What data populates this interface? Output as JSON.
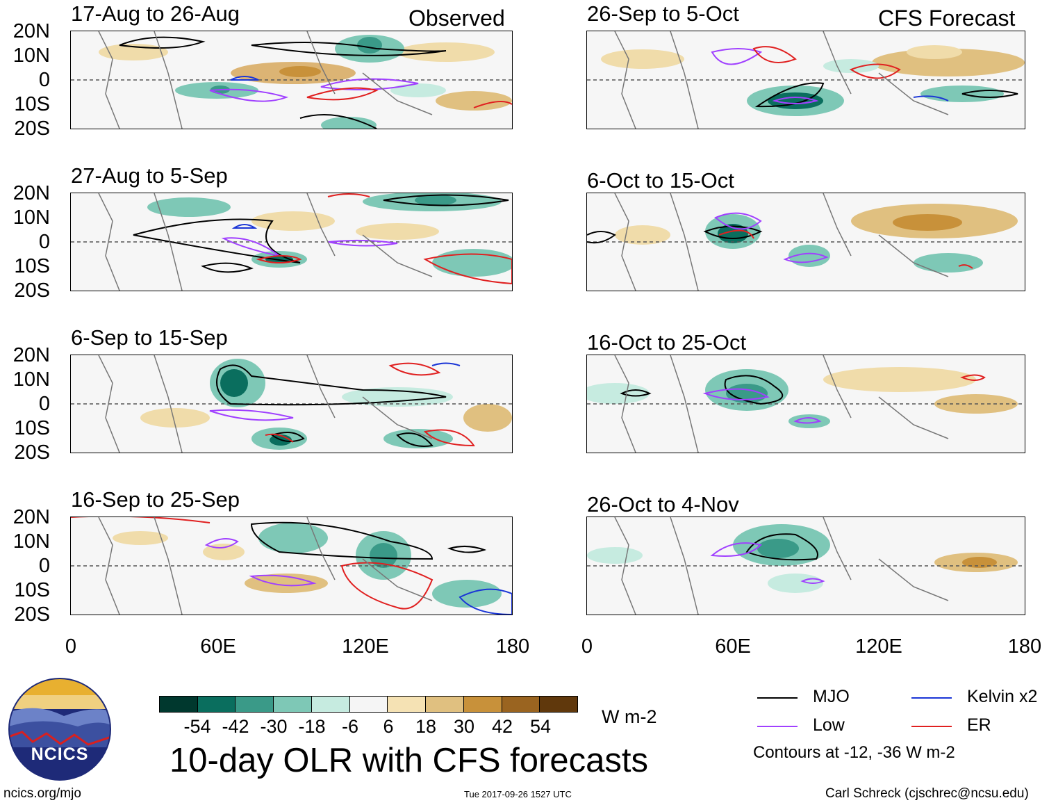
{
  "header": {
    "left_label": "Observed",
    "right_label": "CFS Forecast"
  },
  "panels": [
    {
      "title": "17-Aug to 26-Aug",
      "group": "observed"
    },
    {
      "title": "27-Aug to 5-Sep",
      "group": "observed"
    },
    {
      "title": "6-Sep to 15-Sep",
      "group": "observed"
    },
    {
      "title": "16-Sep to 25-Sep",
      "group": "observed"
    },
    {
      "title": "26-Sep to 5-Oct",
      "group": "forecast"
    },
    {
      "title": "6-Oct to 15-Oct",
      "group": "forecast"
    },
    {
      "title": "16-Oct to 25-Oct",
      "group": "forecast"
    },
    {
      "title": "26-Oct to 4-Nov",
      "group": "forecast"
    }
  ],
  "axes": {
    "y_ticks": [
      "20N",
      "10N",
      "0",
      "10S",
      "20S"
    ],
    "x_ticks": [
      "0",
      "60E",
      "120E",
      "180"
    ]
  },
  "colorbar": {
    "labels": [
      "-54",
      "-42",
      "-30",
      "-18",
      "-6",
      "6",
      "18",
      "30",
      "42",
      "54"
    ],
    "units": "W m-2",
    "colors": [
      "#00382e",
      "#0a6e5e",
      "#3a9a88",
      "#7ec8b6",
      "#c6ebe0",
      "#f5f5f5",
      "#f5e2b4",
      "#e0c080",
      "#c8913a",
      "#9a6420",
      "#60380c"
    ]
  },
  "legend": {
    "items": [
      {
        "label": "MJO",
        "color": "#000000"
      },
      {
        "label": "Kelvin x2",
        "color": "#1a35d6"
      },
      {
        "label": "Low",
        "color": "#a040ff"
      },
      {
        "label": "ER",
        "color": "#e02020"
      }
    ],
    "note": "Contours at -12, -36 W m-2"
  },
  "main_title": "10-day OLR with CFS forecasts",
  "logo": {
    "text": "NCICS"
  },
  "footer": {
    "left": "ncics.org/mjo",
    "center": "Tue 2017-09-26 1527 UTC",
    "right": "Carl Schreck (cjschrec@ncsu.edu)"
  },
  "chart_data": {
    "type": "heatmap",
    "variable": "10-day OLR anomaly",
    "units": "W m-2",
    "x_range": [
      0,
      180
    ],
    "y_range": [
      -20,
      20
    ],
    "contour_levels": [
      -12,
      -36
    ]
  }
}
